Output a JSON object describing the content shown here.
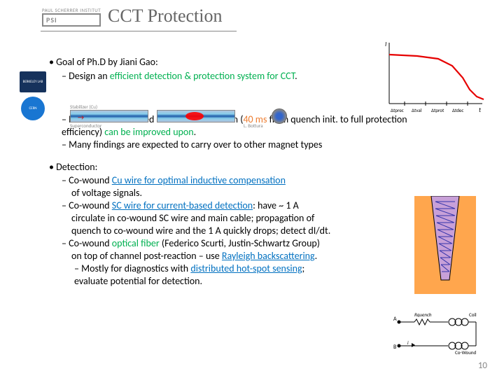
{
  "logo": {
    "institute_text": "PAUL SCHERRER INSTITUT",
    "psi": "PSI"
  },
  "title": "CCT Protection",
  "lab_logos": {
    "a": "BERKELEY LAB",
    "b": "CERN"
  },
  "content": {
    "b1": "Goal of Ph.D by Jiani Gao:",
    "b1a_pre": "Design an ",
    "b1a_green": "efficient detection & protection system for CCT",
    "b1a_post": ".",
    "b1b_pre": "Prove that LHC-based Euro.Cir.Col criterion (",
    "b1b_orange": "40 ms",
    "b1b_mid": " from quench init. to full protection efficiency)  ",
    "b1b_green": "can be improved upon",
    "b1b_post": ".",
    "b1c": "Many findings are expected to carry over to other magnet types",
    "b2": "Detection:",
    "b2a_pre": "Co-wound ",
    "b2a_blue": "Cu wire for optimal inductive compensation",
    "b2a_line2": "of voltage signals.",
    "b2b_pre": "Co-wound ",
    "b2b_blue": "SC wire for current-based detection",
    "b2b_post": ": have ~ 1 A",
    "b2b_l2": "circulate in co-wound SC wire and main cable; propagation of",
    "b2b_l3": "quench to co-wound wire and the 1 A quickly drops; detect dI/dt.",
    "b2c_pre": "Co-wound ",
    "b2c_green": "optical fiber",
    "b2c_post": " (Federico Scurti, Justin-Schwartz Group)",
    "b2c_l2_pre": "on top of channel post-reaction – use ",
    "b2c_l2_blue": "Rayleigh backscattering",
    "b2c_l2_post": ".",
    "b2c_l3_pre": "– Mostly for diagnostics with ",
    "b2c_l3_blue": "distributed hot-spot sensing",
    "b2c_l3_post": ";",
    "b2c_l4": "evaluate potential for detection."
  },
  "superconductor": {
    "label_left": "Stabilizer (Cu)",
    "label_sc": "Superconductor",
    "label_right": "L. Bottura"
  },
  "iv_curve": {
    "type": "line",
    "line_color": "#e60000",
    "axis_color": "#000000",
    "bg": "#ffffff",
    "y_label": "I",
    "x_label": "t",
    "tick_labels": [
      "Δtprec",
      "Δtval",
      "Δtprot",
      "Δtdec"
    ],
    "line_width": 2,
    "points_x": [
      0,
      20,
      40,
      70,
      90,
      105,
      115,
      125,
      135
    ],
    "points_y": [
      22,
      23,
      24,
      28,
      38,
      55,
      72,
      82,
      86
    ]
  },
  "slot": {
    "bg_color": "#ffa64d",
    "slot_fill": "#c080c0",
    "cross_color": "#3333aa",
    "border_color": "#000000"
  },
  "circuit": {
    "labels": {
      "A": "A",
      "B": "B",
      "R": "Rquench",
      "coil": "Coil",
      "cw": "Co-Wound",
      "i": "i"
    },
    "line_color": "#000000"
  },
  "page_number": "10"
}
